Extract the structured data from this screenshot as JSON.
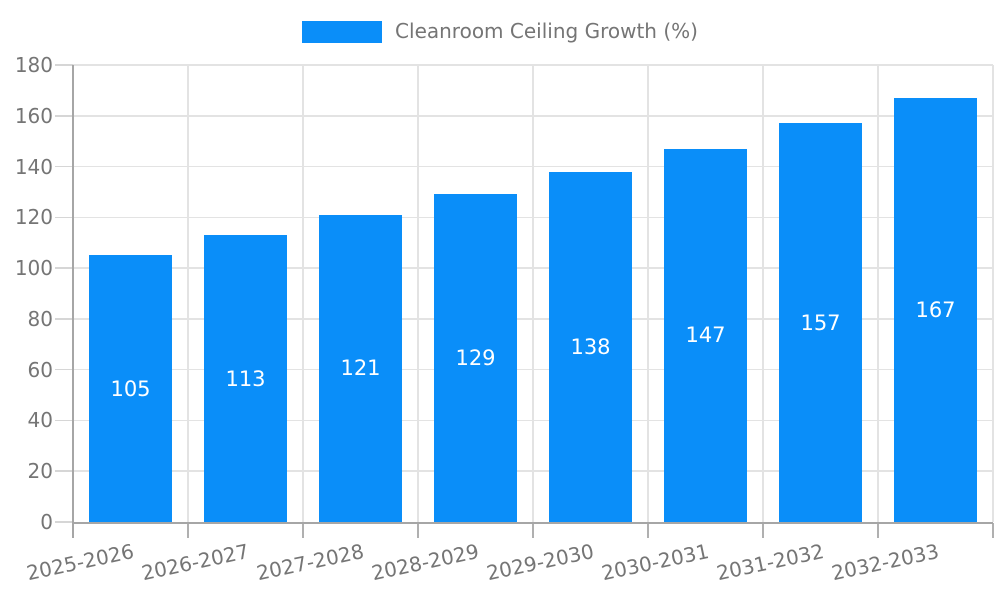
{
  "legend": {
    "label": "Cleanroom Ceiling Growth (%)"
  },
  "chart_data": {
    "type": "bar",
    "title": "",
    "legend_entries": [
      "Cleanroom Ceiling Growth (%)"
    ],
    "legend_position": "top",
    "categories": [
      "2025-2026",
      "2026-2027",
      "2027-2028",
      "2028-2029",
      "2029-2030",
      "2030-2031",
      "2031-2032",
      "2032-2033"
    ],
    "values": [
      105,
      113,
      121,
      129,
      138,
      147,
      157,
      167
    ],
    "xlabel": "",
    "ylabel": "",
    "ylim": [
      0,
      180
    ],
    "y_ticks": [
      0,
      20,
      40,
      60,
      80,
      100,
      120,
      140,
      160,
      180
    ],
    "grid": true,
    "colors": {
      "bar": "#0a8ef9",
      "bar_label": "#ffffff",
      "axis": "#a6a6a6",
      "gridline": "#e3e3e3",
      "y_tick_mark": "#d6d6d6",
      "x_tick_mark": "#b0b0b0",
      "tick_text": "#757575",
      "legend_text": "#757575",
      "background": "#ffffff"
    }
  }
}
